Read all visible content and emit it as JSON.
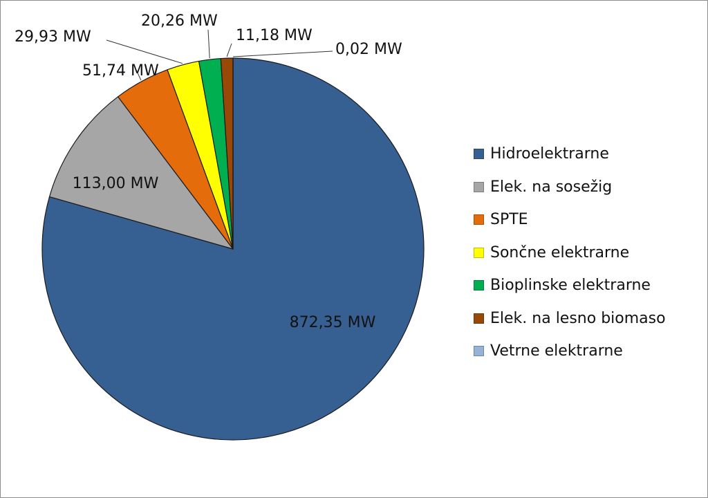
{
  "chart_data": {
    "type": "pie",
    "title": "",
    "unit": "MW",
    "start_angle_deg": 0,
    "direction": "clockwise",
    "legend_position": "right",
    "slices": [
      {
        "name": "Hidroelektrarne",
        "value": 872.35,
        "label": "872,35 MW",
        "color": "#376092"
      },
      {
        "name": "Elek. na sosežig",
        "value": 113.0,
        "label": "113,00 MW",
        "color": "#a6a6a6"
      },
      {
        "name": "SPTE",
        "value": 51.74,
        "label": "51,74 MW",
        "color": "#e46c0a"
      },
      {
        "name": "Sončne elektrarne",
        "value": 29.93,
        "label": "29,93 MW",
        "color": "#ffff00"
      },
      {
        "name": "Bioplinske elektrarne",
        "value": 20.26,
        "label": "20,26 MW",
        "color": "#00b050"
      },
      {
        "name": "Elek. na lesno biomaso",
        "value": 11.18,
        "label": "11,18 MW",
        "color": "#984807"
      },
      {
        "name": "Vetrne elektrarne",
        "value": 0.02,
        "label": "0,02 MW",
        "color": "#95b3d7"
      }
    ]
  }
}
